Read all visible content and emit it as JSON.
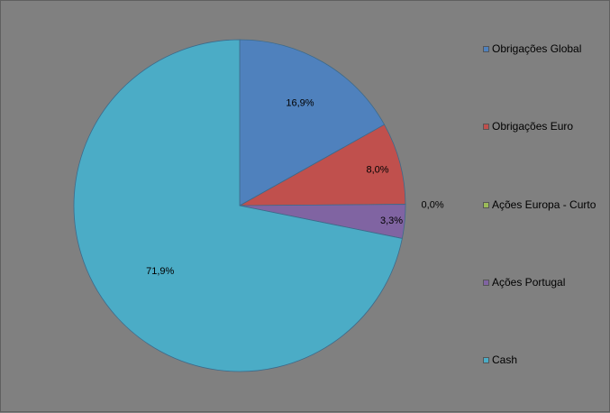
{
  "chart_data": {
    "type": "pie",
    "title": "",
    "legend_position": "right",
    "start_angle_deg": 0,
    "direction": "clockwise",
    "categories": [
      "Obrigações Global",
      "Obrigações Euro",
      "Ações Europa - Curto",
      "Ações Portugal",
      "Cash"
    ],
    "values": [
      16.9,
      8.0,
      0.0,
      3.3,
      71.9
    ],
    "data_labels": [
      "16,9%",
      "8,0%",
      "0,0%",
      "3,3%",
      "71,9%"
    ],
    "colors": [
      "#4f81bd",
      "#c0504d",
      "#9bbb59",
      "#8064a2",
      "#4bacc6"
    ]
  }
}
